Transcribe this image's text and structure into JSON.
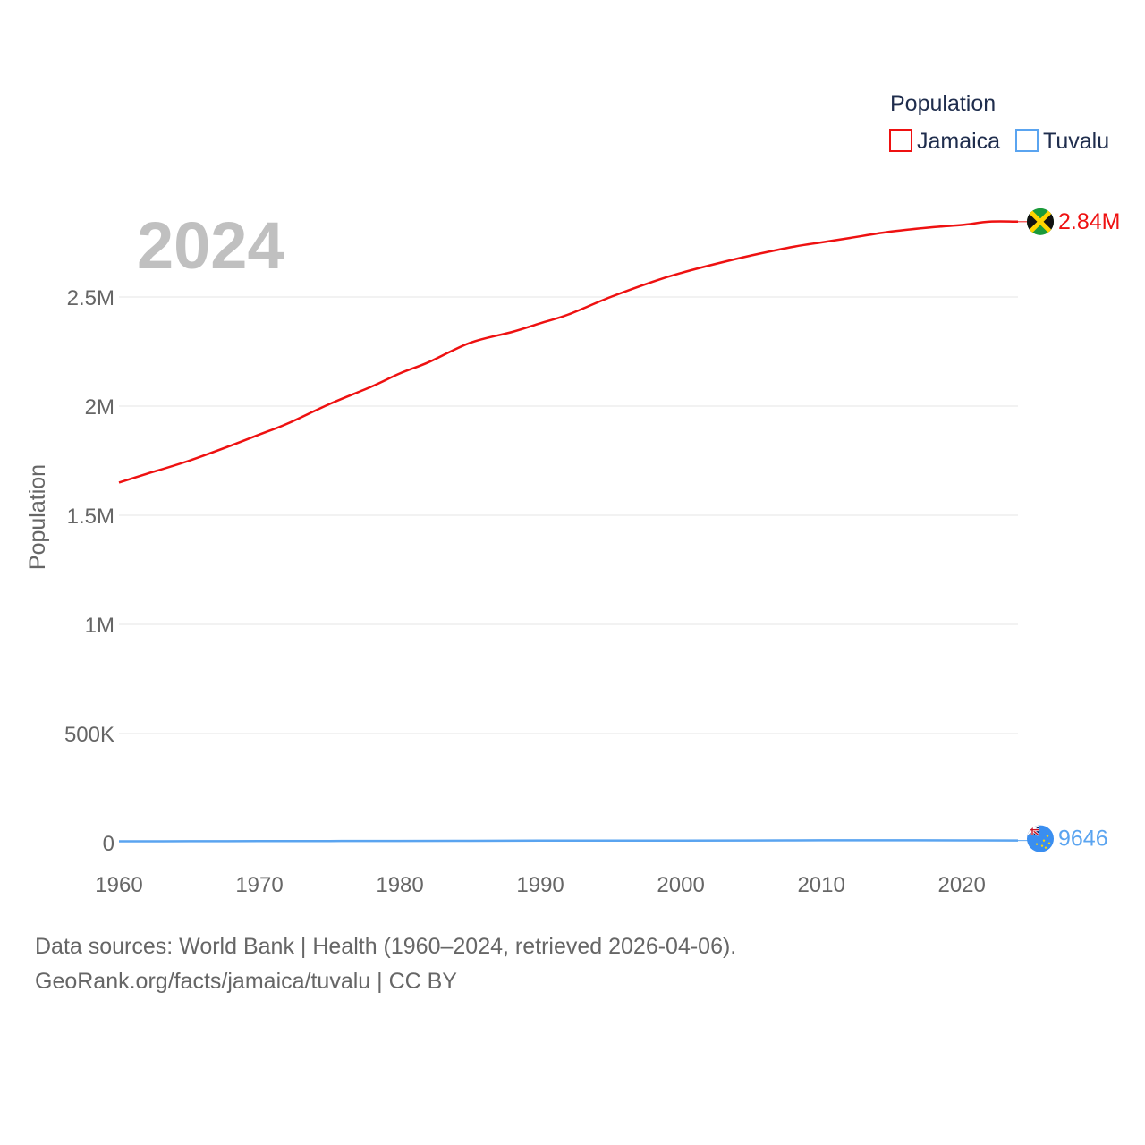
{
  "chart_data": {
    "type": "line",
    "year_label": "2024",
    "ylabel": "Population",
    "legend_title": "Population",
    "ylim": [
      0,
      3000000
    ],
    "xlim": [
      1960,
      2024
    ],
    "y_ticks": [
      {
        "value": 0,
        "label": "0"
      },
      {
        "value": 500000,
        "label": "500K"
      },
      {
        "value": 1000000,
        "label": "1M"
      },
      {
        "value": 1500000,
        "label": "1.5M"
      },
      {
        "value": 2000000,
        "label": "2M"
      },
      {
        "value": 2500000,
        "label": "2.5M"
      }
    ],
    "x_ticks": [
      {
        "value": 1960,
        "label": "1960"
      },
      {
        "value": 1970,
        "label": "1970"
      },
      {
        "value": 1980,
        "label": "1980"
      },
      {
        "value": 1990,
        "label": "1990"
      },
      {
        "value": 2000,
        "label": "2000"
      },
      {
        "value": 2010,
        "label": "2010"
      },
      {
        "value": 2020,
        "label": "2020"
      }
    ],
    "series": [
      {
        "name": "Jamaica",
        "color": "#ee1111",
        "end_label": "2.84M",
        "flag": "jamaica-flag",
        "points": [
          [
            1960,
            1650000
          ],
          [
            1962,
            1690000
          ],
          [
            1965,
            1750000
          ],
          [
            1968,
            1820000
          ],
          [
            1970,
            1870000
          ],
          [
            1972,
            1920000
          ],
          [
            1975,
            2010000
          ],
          [
            1978,
            2090000
          ],
          [
            1980,
            2150000
          ],
          [
            1982,
            2200000
          ],
          [
            1985,
            2290000
          ],
          [
            1988,
            2340000
          ],
          [
            1990,
            2380000
          ],
          [
            1992,
            2420000
          ],
          [
            1995,
            2500000
          ],
          [
            1998,
            2570000
          ],
          [
            2000,
            2610000
          ],
          [
            2003,
            2660000
          ],
          [
            2005,
            2690000
          ],
          [
            2008,
            2730000
          ],
          [
            2010,
            2750000
          ],
          [
            2012,
            2770000
          ],
          [
            2015,
            2800000
          ],
          [
            2018,
            2820000
          ],
          [
            2020,
            2830000
          ],
          [
            2022,
            2845000
          ],
          [
            2024,
            2845000
          ]
        ]
      },
      {
        "name": "Tuvalu",
        "color": "#5aa4f0",
        "end_label": "9646",
        "flag": "tuvalu-flag",
        "points": [
          [
            1960,
            6000
          ],
          [
            1965,
            6500
          ],
          [
            1970,
            7000
          ],
          [
            1975,
            7500
          ],
          [
            1980,
            7700
          ],
          [
            1985,
            8300
          ],
          [
            1990,
            9200
          ],
          [
            1995,
            9300
          ],
          [
            2000,
            9600
          ],
          [
            2005,
            10000
          ],
          [
            2010,
            10500
          ],
          [
            2015,
            10800
          ],
          [
            2020,
            10200
          ],
          [
            2024,
            9646
          ]
        ]
      }
    ]
  },
  "footer": {
    "line1": "Data sources: World Bank | Health (1960–2024, retrieved 2026-04-06).",
    "line2": "GeoRank.org/facts/jamaica/tuvalu | CC BY"
  }
}
